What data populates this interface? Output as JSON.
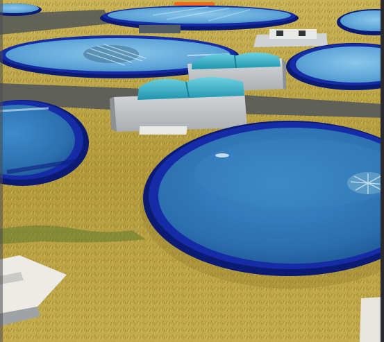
{
  "scene": {
    "subject": "aquaculture-farm-render",
    "palette": {
      "ground": "#b39a3c",
      "ground_dark": "#7f6f27",
      "ground_light": "#d7c163",
      "grass_green": "#5d7a2b",
      "pond_rim": "#152ca6",
      "pond_rim_dark": "#0b1a73",
      "water": "#2b73b4",
      "water_light": "#5fa6d8",
      "water_dark": "#1b4e89",
      "shelter_wall": "#c9ccce",
      "shelter_roof": "#2fb5cc",
      "walkway": "#5a6068",
      "slab": "#ecebe6",
      "frame_edge": "#2a2a2e",
      "progress_marker": "#f06a1e"
    }
  }
}
